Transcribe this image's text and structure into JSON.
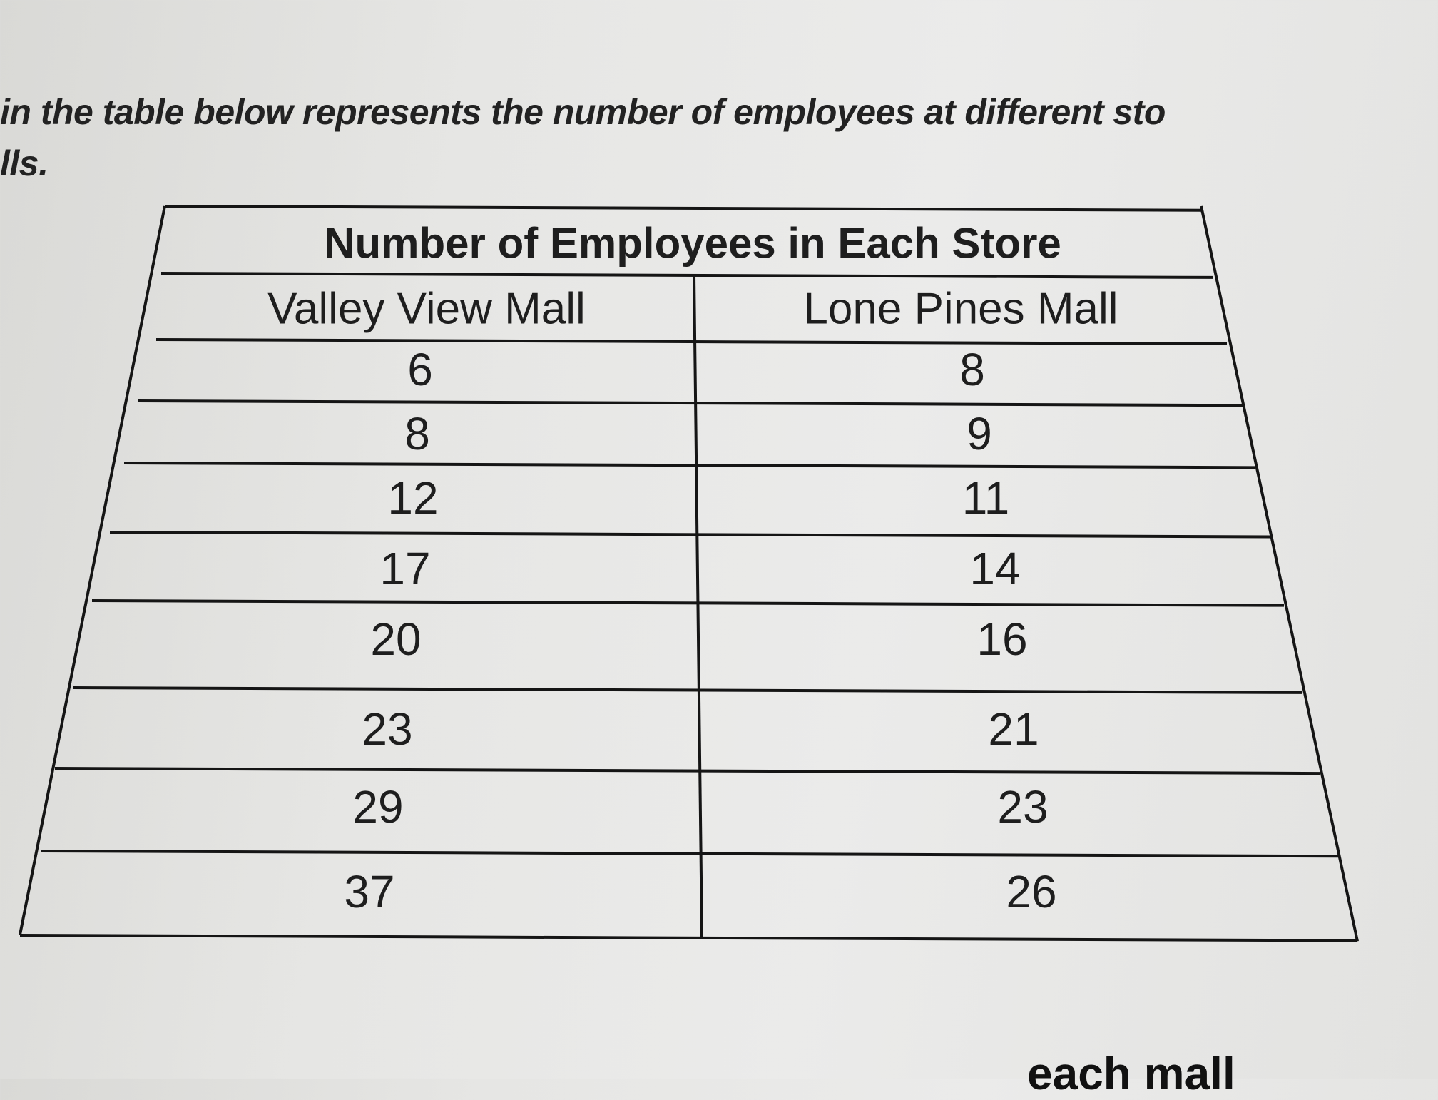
{
  "intro": {
    "line1": "in the table below represents the number of employees at different sto",
    "line2": "lls."
  },
  "table": {
    "title": "Number of Employees in Each Store",
    "headers": [
      "Valley View Mall",
      "Lone Pines Mall"
    ],
    "rows": [
      [
        "6",
        "8"
      ],
      [
        "8",
        "9"
      ],
      [
        "12",
        "11"
      ],
      [
        "17",
        "14"
      ],
      [
        "20",
        "16"
      ],
      [
        "23",
        "21"
      ],
      [
        "29",
        "23"
      ],
      [
        "37",
        "26"
      ]
    ]
  },
  "footer_fragment": "each mall"
}
